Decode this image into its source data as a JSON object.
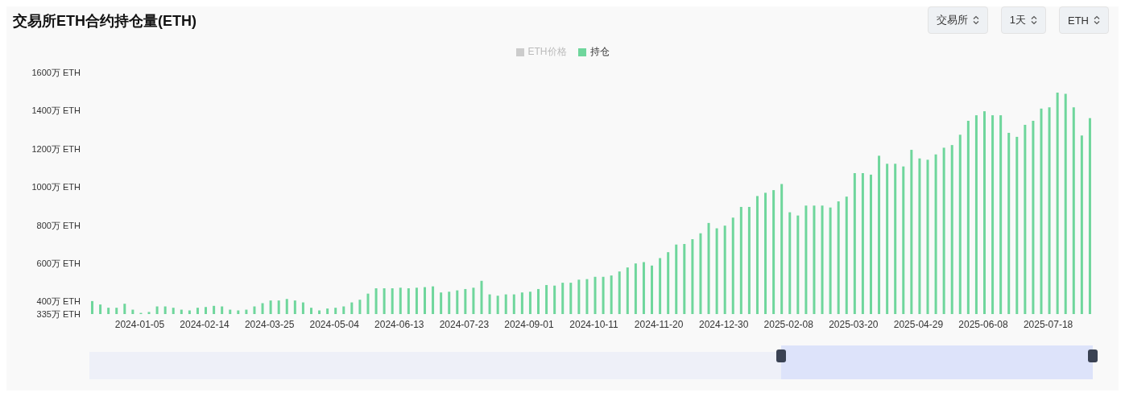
{
  "chart_data": {
    "type": "bar",
    "title": "交易所ETH合约持仓量(ETH)",
    "annotations": [
      "交易所",
      "1天",
      "ETH"
    ],
    "legend": "top",
    "categories": [
      null,
      null,
      null,
      null,
      null,
      null,
      "2024-01-05",
      null,
      null,
      null,
      null,
      null,
      null,
      null,
      "2024-02-14",
      null,
      null,
      null,
      null,
      null,
      null,
      null,
      "2024-03-25",
      null,
      null,
      null,
      null,
      null,
      null,
      null,
      "2024-05-04",
      null,
      null,
      null,
      null,
      null,
      null,
      null,
      "2024-06-13",
      null,
      null,
      null,
      null,
      null,
      null,
      null,
      "2024-07-23",
      null,
      null,
      null,
      null,
      null,
      null,
      null,
      "2024-09-01",
      null,
      null,
      null,
      null,
      null,
      null,
      null,
      "2024-10-11",
      null,
      null,
      null,
      null,
      null,
      null,
      null,
      "2024-11-20",
      null,
      null,
      null,
      null,
      null,
      null,
      null,
      "2024-12-30",
      null,
      null,
      null,
      null,
      null,
      null,
      null,
      "2025-02-08",
      null,
      null,
      null,
      null,
      null,
      null,
      null,
      "2025-03-20",
      null,
      null,
      null,
      null,
      null,
      null,
      null,
      "2025-04-29",
      null,
      null,
      null,
      null,
      null,
      null,
      null,
      "2025-06-08",
      null,
      null,
      null,
      null,
      null,
      null,
      null,
      "2025-07-18",
      null,
      null,
      null,
      null,
      null
    ],
    "series": [
      {
        "name": "ETH价格",
        "color": "#cccccc",
        "values": [
          null,
          null,
          null,
          null,
          null,
          null,
          null,
          null,
          null,
          null,
          null,
          null,
          null,
          null,
          null,
          null,
          null,
          null,
          null,
          null,
          null,
          null,
          null,
          null,
          null,
          null,
          null,
          null,
          null,
          null,
          null,
          null,
          null,
          null,
          null,
          null,
          null,
          null,
          null,
          null,
          null,
          null,
          null,
          null,
          null,
          null,
          null,
          null,
          null,
          null,
          null,
          null,
          null,
          null,
          null,
          null,
          null,
          null,
          null,
          null,
          null,
          null,
          null,
          null,
          null,
          null,
          null,
          null,
          null,
          null,
          null,
          null,
          null,
          null,
          null,
          null,
          null,
          null,
          null,
          null,
          null,
          null,
          null,
          null,
          null,
          null,
          null,
          null,
          null,
          null,
          null,
          null,
          null,
          null,
          null,
          null,
          null,
          null,
          null,
          null,
          null,
          null,
          null,
          null,
          null,
          null,
          null,
          null,
          null,
          null,
          null,
          null,
          null,
          null,
          null,
          null,
          null,
          null,
          null,
          null,
          null,
          null,
          null,
          null
        ]
      },
      {
        "name": "持仓",
        "color": "#6fd69c",
        "values": [
          403,
          385,
          368,
          368,
          389,
          358,
          341,
          346,
          375,
          375,
          368,
          358,
          354,
          368,
          372,
          378,
          375,
          358,
          354,
          358,
          375,
          392,
          406,
          406,
          414,
          406,
          396,
          368,
          354,
          364,
          368,
          375,
          396,
          410,
          442,
          470,
          470,
          470,
          473,
          470,
          473,
          476,
          480,
          448,
          452,
          459,
          466,
          473,
          509,
          438,
          431,
          438,
          438,
          448,
          452,
          466,
          487,
          484,
          499,
          499,
          515,
          518,
          530,
          530,
          537,
          558,
          579,
          600,
          607,
          589,
          628,
          659,
          699,
          702,
          727,
          758,
          812,
          784,
          798,
          840,
          896,
          896,
          953,
          970,
          984,
          1016,
          868,
          851,
          903,
          903,
          903,
          893,
          925,
          950,
          1073,
          1073,
          1065,
          1164,
          1122,
          1122,
          1108,
          1195,
          1150,
          1143,
          1171,
          1206,
          1220,
          1274,
          1347,
          1376,
          1397,
          1376,
          1376,
          1284,
          1263,
          1326,
          1347,
          1411,
          1418,
          1495,
          1488,
          1418,
          1270,
          1361
        ]
      }
    ],
    "ylim": [
      335,
      1600
    ],
    "yticks": [
      {
        "value": 335,
        "label": "335万 ETH"
      },
      {
        "value": 400,
        "label": "400万 ETH"
      },
      {
        "value": 600,
        "label": "600万 ETH"
      },
      {
        "value": 800,
        "label": "800万 ETH"
      },
      {
        "value": 1000,
        "label": "1000万 ETH"
      },
      {
        "value": 1200,
        "label": "1200万 ETH"
      },
      {
        "value": 1400,
        "label": "1400万 ETH"
      },
      {
        "value": 1600,
        "label": "1600万 ETH"
      }
    ]
  }
}
